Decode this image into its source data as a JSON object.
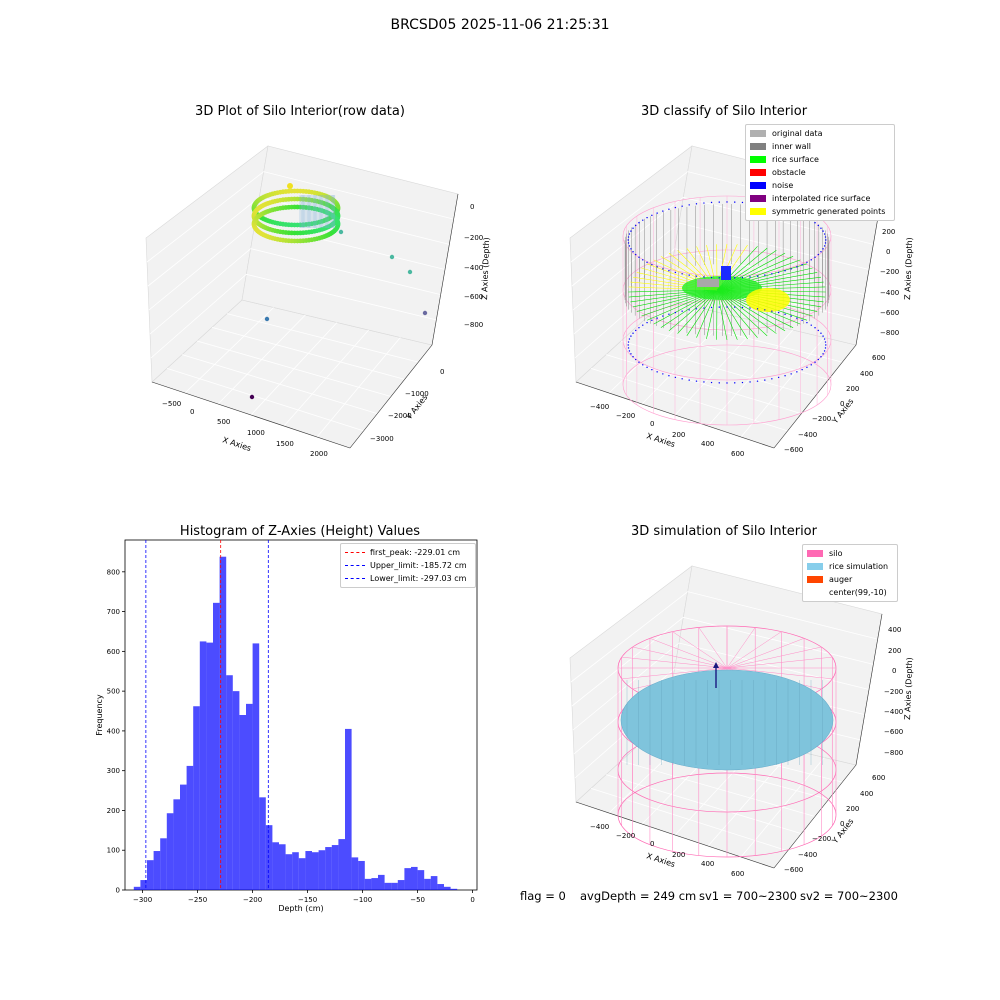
{
  "figure": {
    "suptitle": "BRCSD05 2025-11-06 21:25:31",
    "footer": {
      "flag": "flag = 0",
      "avg_depth": "avgDepth = 249 cm",
      "sv1": "sv1 = 700~2300",
      "sv2": "sv2 = 700~2300"
    }
  },
  "panel_raw": {
    "title": "3D Plot of Silo Interior(row data)",
    "xlabel": "X Axies",
    "ylabel": "Y Axies",
    "zlabel": "Z Axies (Depth)",
    "x_ticks": [
      "−500",
      "0",
      "500",
      "1000",
      "1500",
      "2000"
    ],
    "y_ticks": [
      "0",
      "−1000",
      "−2000",
      "−3000"
    ],
    "z_ticks": [
      "0",
      "−200",
      "−400",
      "−600",
      "−800"
    ]
  },
  "panel_classify": {
    "title": "3D classify of Silo Interior",
    "xlabel": "X Axies",
    "ylabel": "Y Axies",
    "zlabel": "Z Axies (Depth)",
    "x_ticks": [
      "−400",
      "−200",
      "0",
      "200",
      "400",
      "600"
    ],
    "y_ticks": [
      "600",
      "400",
      "200",
      "0",
      "−200",
      "−400",
      "−600"
    ],
    "z_ticks": [
      "200",
      "0",
      "−200",
      "−400",
      "−600",
      "−800"
    ],
    "legend": [
      {
        "label": "original data",
        "color": "#b0b0b0"
      },
      {
        "label": "inner wall",
        "color": "#808080"
      },
      {
        "label": "rice surface",
        "color": "#00ff00"
      },
      {
        "label": "obstacle",
        "color": "#ff0000"
      },
      {
        "label": "noise",
        "color": "#0000ff"
      },
      {
        "label": "interpolated rice surface",
        "color": "#800080"
      },
      {
        "label": "symmetric generated points",
        "color": "#ffff00"
      }
    ]
  },
  "panel_sim": {
    "title": "3D simulation of Silo Interior",
    "xlabel": "X Axies",
    "ylabel": "Y Axies",
    "zlabel": "Z Axies (Depth)",
    "x_ticks": [
      "−400",
      "−200",
      "0",
      "200",
      "400",
      "600"
    ],
    "y_ticks": [
      "600",
      "400",
      "200",
      "0",
      "−200",
      "−400",
      "−600"
    ],
    "z_ticks": [
      "400",
      "200",
      "0",
      "−200",
      "−400",
      "−600",
      "−800"
    ],
    "legend": [
      {
        "label": "silo",
        "color": "#ff69b4"
      },
      {
        "label": "rice simulation",
        "color": "#87ceeb"
      },
      {
        "label": "auger",
        "color": "#ff4500"
      },
      {
        "label": "center(99,-10)",
        "color": "#ffffff"
      }
    ]
  },
  "chart_data": {
    "type": "bar",
    "title": "Histogram of Z-Axies (Height) Values",
    "xlabel": "Depth (cm)",
    "ylabel": "Frequency",
    "xlim": [
      -316,
      4
    ],
    "ylim": [
      0,
      880
    ],
    "x_ticks": [
      -300,
      -250,
      -200,
      -150,
      -100,
      -50,
      0
    ],
    "x_tick_labels": [
      "−300",
      "−250",
      "−200",
      "−150",
      "−100",
      "−50",
      "0"
    ],
    "y_ticks": [
      0,
      100,
      200,
      300,
      400,
      500,
      600,
      700,
      800
    ],
    "bar_color": "#0000ff",
    "bin_width": 6.0,
    "bin_start": -308,
    "values": [
      8,
      25,
      75,
      98,
      130,
      193,
      228,
      265,
      312,
      462,
      625,
      622,
      722,
      838,
      540,
      500,
      440,
      468,
      620,
      233,
      163,
      120,
      115,
      90,
      95,
      80,
      98,
      95,
      100,
      108,
      113,
      128,
      405,
      82,
      73,
      28,
      30,
      38,
      18,
      18,
      25,
      55,
      58,
      50,
      28,
      35,
      15,
      8,
      3
    ],
    "vlines": [
      {
        "x": -229.01,
        "color": "#ff0000",
        "label": "first_peak: -229.01 cm"
      },
      {
        "x": -185.72,
        "color": "#0000ff",
        "label": "Upper_limit: -185.72 cm"
      },
      {
        "x": -297.03,
        "color": "#0000ff",
        "label": "Lower_limit: -297.03 cm"
      }
    ],
    "legend_position": "top-right"
  }
}
